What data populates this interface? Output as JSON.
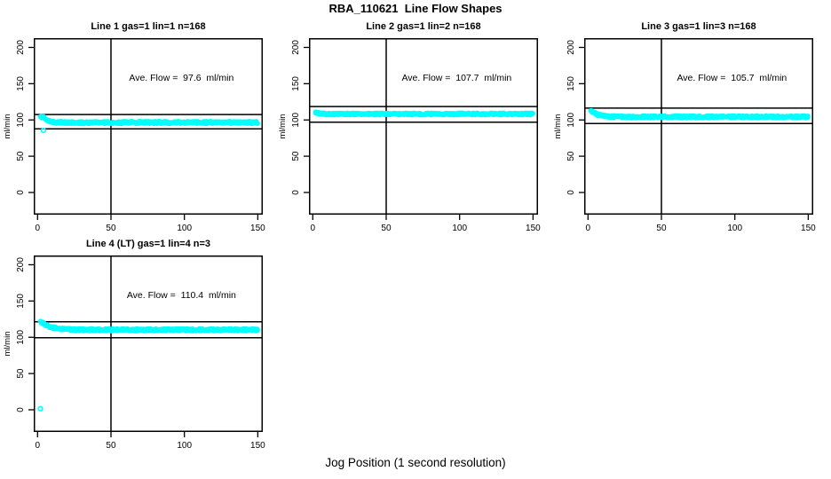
{
  "figure": {
    "title": "RBA_110621  Line Flow Shapes",
    "xlabel": "Jog Position (1 second resolution)",
    "ylabel": "ml/min",
    "background": "#ffffff",
    "point_color": "#00FFFF",
    "line_color": "#000000"
  },
  "chart_data": [
    {
      "type": "scatter",
      "title": "Line 1 gas=1 lin=1 n=168",
      "annotation": "Ave. Flow =  97.6  ml/min",
      "annotation_xy": [
        98,
        154
      ],
      "ave_flow": 97.6,
      "xlim": [
        -2.6,
        153.4
      ],
      "ylim": [
        -30.6,
        212.8
      ],
      "xticks": [
        0,
        50,
        100,
        150
      ],
      "yticks": [
        0,
        50,
        100,
        150,
        200
      ],
      "ref_hlines": [
        107.4,
        87.8
      ],
      "ref_vline": 50,
      "band_halfwidth": 1.5,
      "trend": [
        [
          2,
          103.6
        ],
        [
          3,
          104.3
        ],
        [
          4,
          103.8
        ],
        [
          5,
          101.5
        ],
        [
          6,
          100.3
        ],
        [
          8,
          98.6
        ],
        [
          10,
          97.6
        ],
        [
          12,
          97.0
        ],
        [
          15,
          96.6
        ],
        [
          20,
          96.4
        ],
        [
          30,
          96.4
        ],
        [
          50,
          96.5
        ],
        [
          70,
          96.5
        ],
        [
          90,
          96.6
        ],
        [
          110,
          96.5
        ],
        [
          130,
          96.5
        ],
        [
          150,
          96.5
        ]
      ],
      "outliers": [
        [
          4,
          85.5
        ]
      ]
    },
    {
      "type": "scatter",
      "title": "Line 2 gas=1 lin=2 n=168",
      "annotation": "Ave. Flow =  107.7  ml/min",
      "annotation_xy": [
        98,
        154
      ],
      "ave_flow": 107.7,
      "xlim": [
        -2.6,
        153.4
      ],
      "ylim": [
        -30.6,
        212.8
      ],
      "xticks": [
        0,
        50,
        100,
        150
      ],
      "yticks": [
        0,
        50,
        100,
        150,
        200
      ],
      "ref_hlines": [
        118.5,
        96.9
      ],
      "ref_vline": 50,
      "band_halfwidth": 1.3,
      "trend": [
        [
          2,
          110.4
        ],
        [
          3,
          109.8
        ],
        [
          4,
          109.3
        ],
        [
          6,
          108.7
        ],
        [
          8,
          108.4
        ],
        [
          10,
          108.3
        ],
        [
          15,
          108.2
        ],
        [
          20,
          108.2
        ],
        [
          50,
          108.2
        ],
        [
          100,
          108.3
        ],
        [
          150,
          108.2
        ]
      ],
      "outliers": []
    },
    {
      "type": "scatter",
      "title": "Line 3 gas=1 lin=3 n=168",
      "annotation": "Ave. Flow =  105.7  ml/min",
      "annotation_xy": [
        98,
        154
      ],
      "ave_flow": 105.7,
      "xlim": [
        -2.6,
        153.4
      ],
      "ylim": [
        -30.6,
        212.8
      ],
      "xticks": [
        0,
        50,
        100,
        150
      ],
      "yticks": [
        0,
        50,
        100,
        150,
        200
      ],
      "ref_hlines": [
        116.3,
        95.1
      ],
      "ref_vline": 50,
      "band_halfwidth": 1.5,
      "trend": [
        [
          2,
          112.6
        ],
        [
          3,
          111.2
        ],
        [
          4,
          109.9
        ],
        [
          6,
          107.8
        ],
        [
          8,
          106.4
        ],
        [
          10,
          105.5
        ],
        [
          13,
          104.8
        ],
        [
          16,
          104.5
        ],
        [
          20,
          104.3
        ],
        [
          30,
          104.2
        ],
        [
          50,
          104.3
        ],
        [
          100,
          104.3
        ],
        [
          150,
          104.4
        ]
      ],
      "outliers": []
    },
    {
      "type": "scatter",
      "title": "Line 4 (LT) gas=1 lin=4 n=3",
      "annotation": "Ave. Flow =  110.4  ml/min",
      "annotation_xy": [
        98,
        154
      ],
      "ave_flow": 110.4,
      "xlim": [
        -2.6,
        153.4
      ],
      "ylim": [
        -30.6,
        212.8
      ],
      "xticks": [
        0,
        50,
        100,
        150
      ],
      "yticks": [
        0,
        50,
        100,
        150,
        200
      ],
      "ref_hlines": [
        121.4,
        99.4
      ],
      "ref_vline": 50,
      "band_halfwidth": 1.5,
      "trend": [
        [
          2,
          121.8
        ],
        [
          3,
          120.4
        ],
        [
          4,
          119.0
        ],
        [
          6,
          116.8
        ],
        [
          8,
          115.0
        ],
        [
          10,
          113.6
        ],
        [
          13,
          112.3
        ],
        [
          16,
          111.5
        ],
        [
          20,
          110.9
        ],
        [
          25,
          110.5
        ],
        [
          30,
          110.4
        ],
        [
          40,
          110.3
        ],
        [
          60,
          110.2
        ],
        [
          80,
          110.2
        ],
        [
          100,
          110.3
        ],
        [
          120,
          110.3
        ],
        [
          150,
          110.4
        ]
      ],
      "outliers": [
        [
          2,
          1.5
        ]
      ]
    }
  ],
  "layout_note": "2x2 panel grid (bottom-right empty), R base graphics style"
}
